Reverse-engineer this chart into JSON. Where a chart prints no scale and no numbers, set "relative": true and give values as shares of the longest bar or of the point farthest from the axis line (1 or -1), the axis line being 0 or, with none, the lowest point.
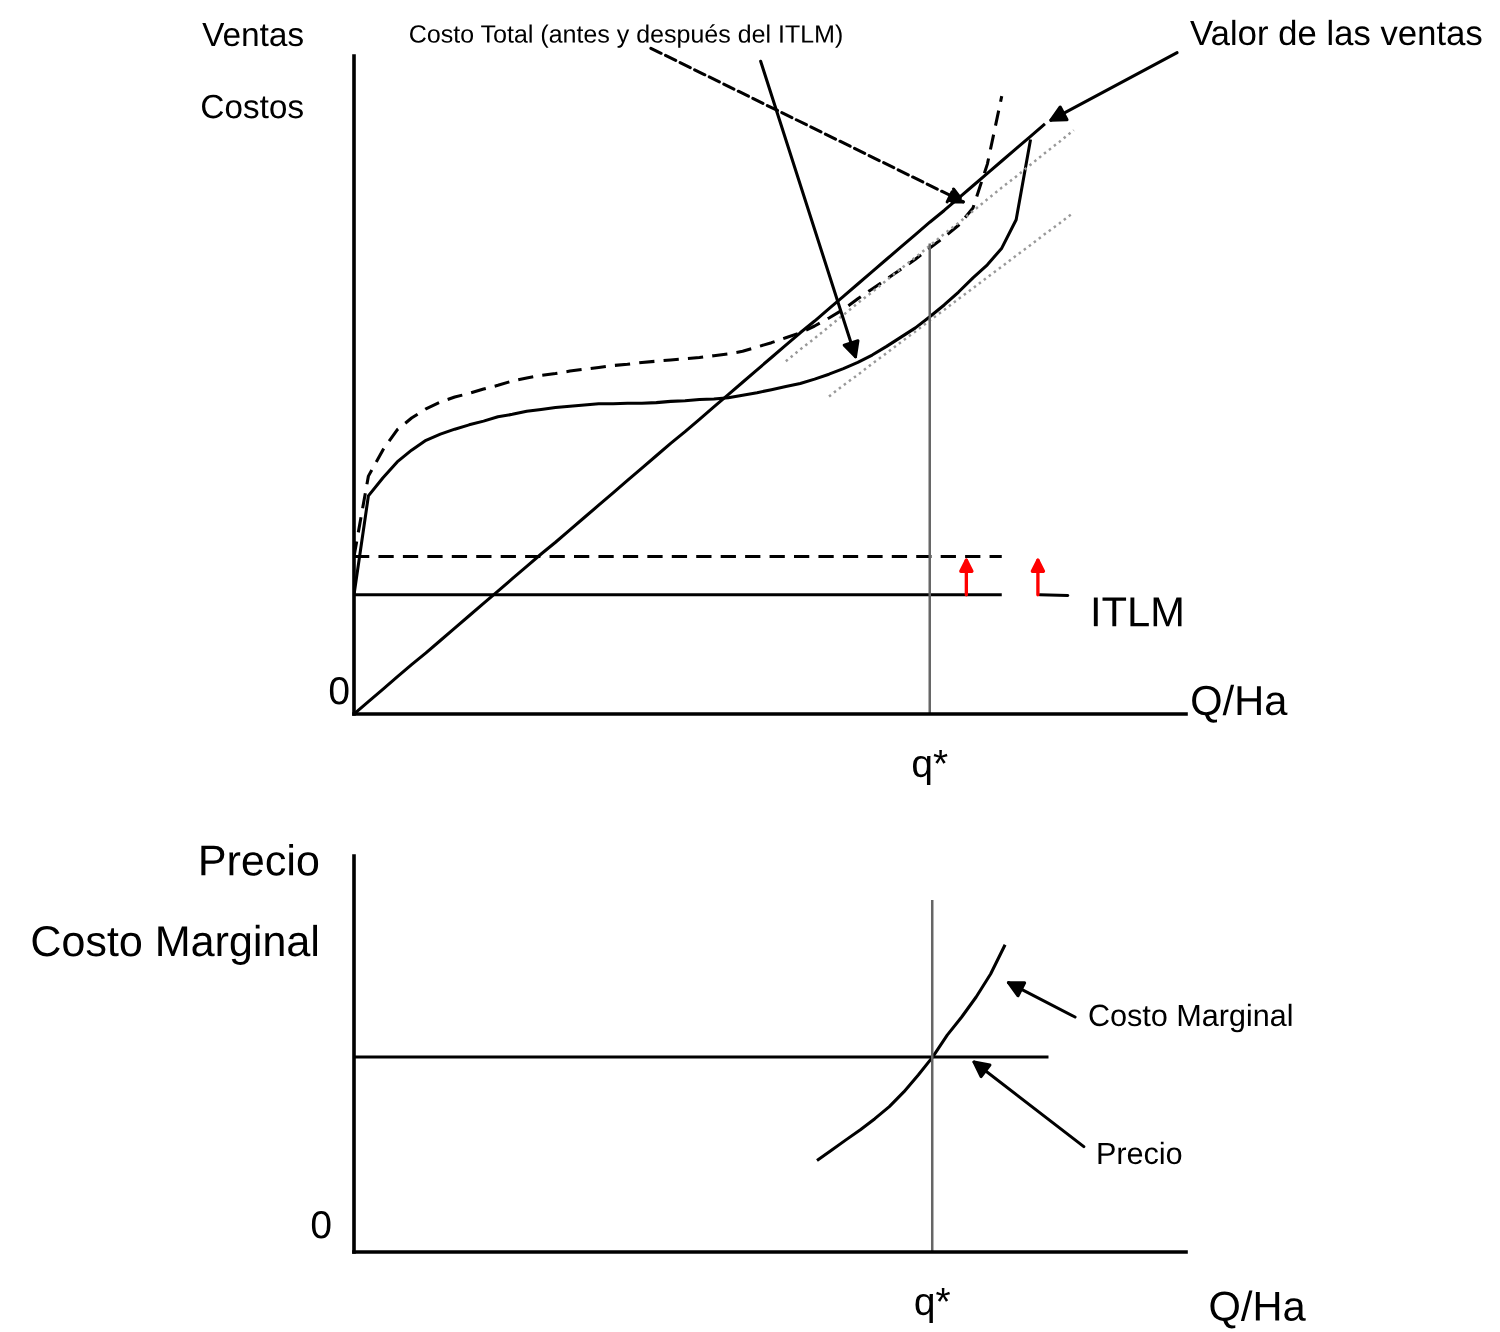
{
  "chart_data": [
    {
      "type": "line",
      "relative": true,
      "ylabel": "Ventas\nCostos",
      "xlabel": "Q/Ha",
      "categories": [
        null,
        null,
        null,
        null,
        null,
        null,
        null,
        null,
        null,
        null,
        null,
        null,
        null,
        null,
        null,
        null,
        null,
        null,
        null,
        null,
        null,
        null,
        null,
        null,
        null,
        null,
        null,
        null,
        null,
        null,
        null,
        null,
        null,
        null,
        null,
        null,
        null,
        null,
        null,
        null,
        null,
        null,
        null,
        null,
        null,
        null,
        null,
        null,
        null,
        null,
        null
      ],
      "series": [
        {
          "color": "#000000",
          "line_style": "solid",
          "values": [
            0.193,
            0.353,
            0.382,
            0.408,
            0.427,
            0.443,
            0.453,
            0.461,
            0.468,
            0.474,
            0.481,
            0.485,
            0.49,
            0.493,
            0.496,
            0.498,
            0.5,
            0.502,
            0.502,
            0.503,
            0.503,
            0.504,
            0.506,
            0.507,
            0.509,
            0.51,
            0.512,
            0.516,
            0.52,
            0.525,
            0.53,
            0.535,
            0.542,
            0.55,
            0.559,
            0.569,
            0.581,
            0.595,
            0.61,
            0.625,
            0.643,
            0.662,
            0.683,
            0.706,
            0.727,
            0.754,
            0.8,
            0.93,
            null,
            null,
            null
          ]
        },
        {
          "color": "#000000",
          "line_style": "dashed",
          "values": [
            0.255,
            0.385,
            0.427,
            0.46,
            0.479,
            0.494,
            0.505,
            0.513,
            0.519,
            0.526,
            0.532,
            0.539,
            0.544,
            0.548,
            0.551,
            0.555,
            0.558,
            0.561,
            0.564,
            0.566,
            0.569,
            0.571,
            0.573,
            0.575,
            0.577,
            0.58,
            0.583,
            0.587,
            0.594,
            0.601,
            0.609,
            0.617,
            0.628,
            0.641,
            0.655,
            0.672,
            0.688,
            0.704,
            0.72,
            0.736,
            0.754,
            0.772,
            0.791,
            0.819,
            0.89,
            1.0,
            null,
            null,
            null,
            null,
            null
          ]
        },
        {
          "color": "#000000",
          "line_style": "solid",
          "values": [
            0,
            0.02,
            0.04,
            0.06,
            0.08,
            0.099,
            0.119,
            0.139,
            0.159,
            0.179,
            0.199,
            0.219,
            0.239,
            0.259,
            0.278,
            0.298,
            0.318,
            0.338,
            0.358,
            0.378,
            0.398,
            0.418,
            0.438,
            0.457,
            0.477,
            0.497,
            0.517,
            0.537,
            0.557,
            0.577,
            0.597,
            0.617,
            0.636,
            0.656,
            0.676,
            0.696,
            0.716,
            0.736,
            0.756,
            0.776,
            0.796,
            0.815,
            0.835,
            0.855,
            0.875,
            0.895,
            0.915,
            0.935,
            0.955,
            null,
            null
          ]
        },
        {
          "color": "#999999",
          "line_style": "dotted",
          "values": [
            null,
            null,
            null,
            null,
            null,
            null,
            null,
            null,
            null,
            null,
            null,
            null,
            null,
            null,
            null,
            null,
            null,
            null,
            null,
            null,
            null,
            null,
            null,
            null,
            null,
            null,
            null,
            null,
            null,
            null,
            0.571,
            0.59,
            0.608,
            0.627,
            0.646,
            0.665,
            0.683,
            0.702,
            0.721,
            0.739,
            0.758,
            0.777,
            0.795,
            0.814,
            0.833,
            0.852,
            0.87,
            0.889,
            0.908,
            0.926,
            0.945
          ]
        },
        {
          "color": "#999999",
          "line_style": "dotted",
          "values": [
            null,
            null,
            null,
            null,
            null,
            null,
            null,
            null,
            null,
            null,
            null,
            null,
            null,
            null,
            null,
            null,
            null,
            null,
            null,
            null,
            null,
            null,
            null,
            null,
            null,
            null,
            null,
            null,
            null,
            null,
            null,
            null,
            null,
            0.514,
            0.532,
            0.549,
            0.567,
            0.584,
            0.602,
            0.619,
            0.637,
            0.654,
            0.672,
            0.689,
            0.707,
            0.724,
            0.742,
            0.759,
            0.777,
            0.794,
            0.812
          ]
        },
        {
          "color": "#000000",
          "line_style": "solid",
          "values": [
            0.193,
            0.193,
            0.193,
            0.193,
            0.193,
            0.193,
            0.193,
            0.193,
            0.193,
            0.193,
            0.193,
            0.193,
            0.193,
            0.193,
            0.193,
            0.193,
            0.193,
            0.193,
            0.193,
            0.193,
            0.193,
            0.193,
            0.193,
            0.193,
            0.193,
            0.193,
            0.193,
            0.193,
            0.193,
            0.193,
            0.193,
            0.193,
            0.193,
            0.193,
            0.193,
            0.193,
            0.193,
            0.193,
            0.193,
            0.193,
            0.193,
            0.193,
            0.193,
            0.193,
            0.193,
            0.193,
            null,
            null,
            null,
            null,
            null
          ]
        },
        {
          "color": "#000000",
          "line_style": "dashed",
          "values": [
            0.255,
            0.255,
            0.255,
            0.255,
            0.255,
            0.255,
            0.255,
            0.255,
            0.255,
            0.255,
            0.255,
            0.255,
            0.255,
            0.255,
            0.255,
            0.255,
            0.255,
            0.255,
            0.255,
            0.255,
            0.255,
            0.255,
            0.255,
            0.255,
            0.255,
            0.255,
            0.255,
            0.255,
            0.255,
            0.255,
            0.255,
            0.255,
            0.255,
            0.255,
            0.255,
            0.255,
            0.255,
            0.255,
            0.255,
            0.255,
            0.255,
            0.255,
            0.255,
            0.255,
            0.255,
            0.255,
            null,
            null,
            null,
            null,
            null
          ]
        }
      ],
      "annotations": [
        "Costo Total (antes y después del ITLM)",
        "Valor de las ventas",
        "ITLM",
        "0",
        "q*"
      ]
    },
    {
      "type": "line",
      "relative": true,
      "ylabel": "Precio\nCosto Marginal",
      "xlabel": "Q/Ha",
      "categories": [
        null,
        null,
        null,
        null,
        null,
        null,
        null,
        null,
        null,
        null,
        null,
        null,
        null,
        null,
        null,
        null,
        null,
        null,
        null,
        null,
        null,
        null,
        null,
        null,
        null,
        null,
        null,
        null,
        null,
        null,
        null,
        null,
        null,
        null,
        null,
        null,
        null,
        null,
        null,
        null,
        null,
        null,
        null,
        null,
        null,
        null,
        null,
        null,
        null
      ],
      "series": [
        {
          "color": "#000000",
          "line_style": "solid",
          "values": [
            0.635,
            0.635,
            0.635,
            0.635,
            0.635,
            0.635,
            0.635,
            0.635,
            0.635,
            0.635,
            0.635,
            0.635,
            0.635,
            0.635,
            0.635,
            0.635,
            0.635,
            0.635,
            0.635,
            0.635,
            0.635,
            0.635,
            0.635,
            0.635,
            0.635,
            0.635,
            0.635,
            0.635,
            0.635,
            0.635,
            0.635,
            0.635,
            0.635,
            0.635,
            0.635,
            0.635,
            0.635,
            0.635,
            0.635,
            0.635,
            0.635,
            0.635,
            0.635,
            0.635,
            0.635,
            0.635,
            0.635,
            0.635,
            0.635
          ]
        },
        {
          "color": "#000000",
          "line_style": "solid",
          "values": [
            null,
            null,
            null,
            null,
            null,
            null,
            null,
            null,
            null,
            null,
            null,
            null,
            null,
            null,
            null,
            null,
            null,
            null,
            null,
            null,
            null,
            null,
            null,
            null,
            null,
            null,
            null,
            null,
            null,
            null,
            null,
            null,
            0.298,
            0.331,
            0.365,
            0.398,
            0.434,
            0.473,
            0.521,
            0.576,
            0.635,
            0.706,
            0.765,
            0.83,
            0.905,
            1.0,
            null,
            null,
            null
          ]
        }
      ],
      "annotations": [
        "Costo Marginal",
        "Precio",
        "0",
        "q*"
      ]
    }
  ]
}
